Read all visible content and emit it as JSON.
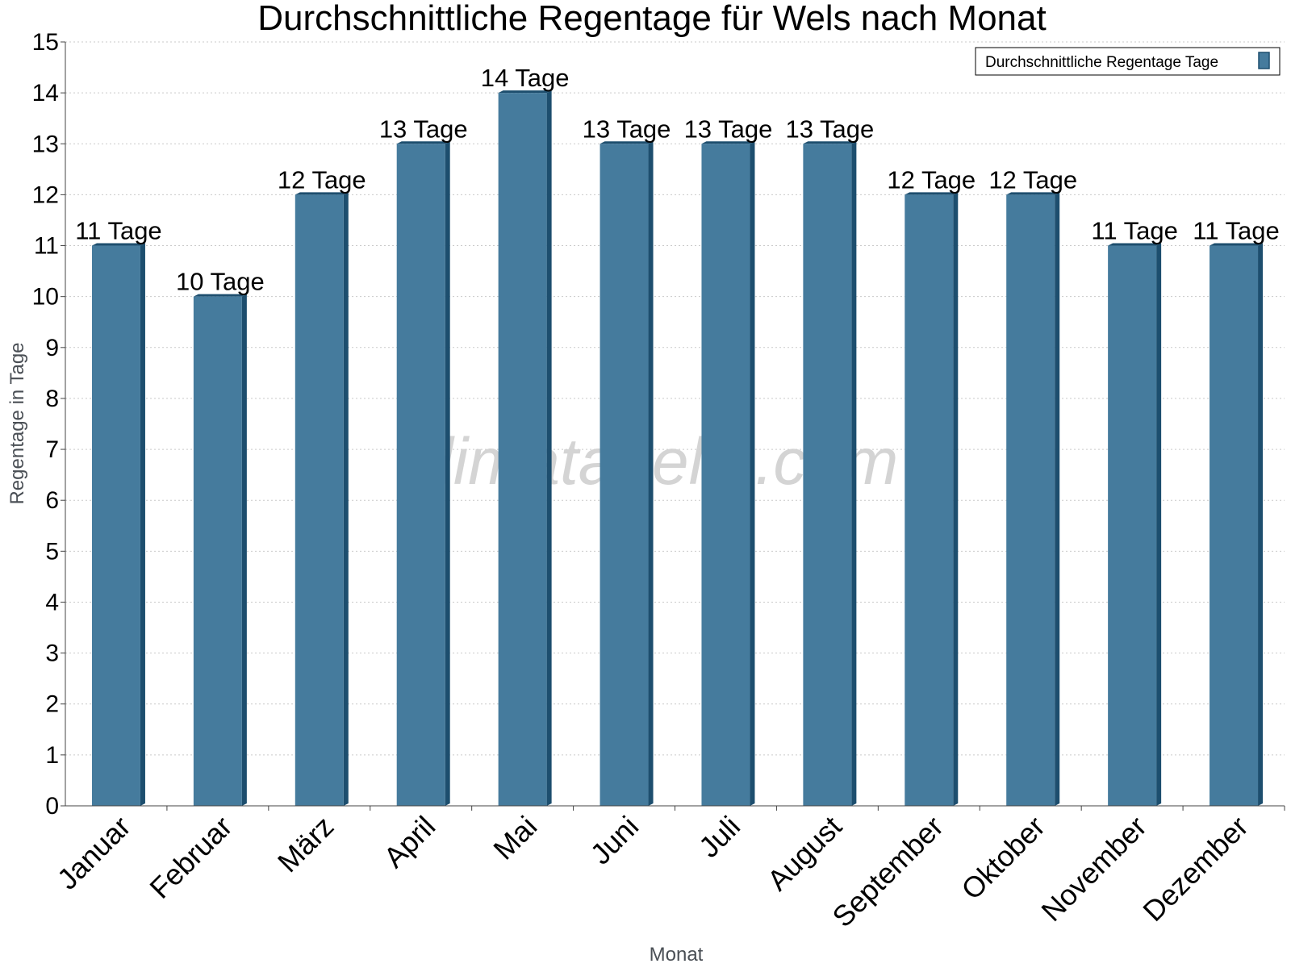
{
  "chart_data": {
    "type": "bar",
    "title": "Durchschnittliche Regentage für Wels nach Monat",
    "xlabel": "Monat",
    "ylabel": "Regentage in Tage",
    "categories": [
      "Januar",
      "Februar",
      "März",
      "April",
      "Mai",
      "Juni",
      "Juli",
      "August",
      "September",
      "Oktober",
      "November",
      "Dezember"
    ],
    "series": [
      {
        "name": "Durchschnittliche Regentage Tage",
        "values": [
          11,
          10,
          12,
          13,
          14,
          13,
          13,
          13,
          12,
          12,
          11,
          11
        ],
        "labels": [
          "11 Tage",
          "10 Tage",
          "12 Tage",
          "13 Tage",
          "14 Tage",
          "13 Tage",
          "13 Tage",
          "13 Tage",
          "12 Tage",
          "12 Tage",
          "11 Tage",
          "11 Tage"
        ],
        "color": "#457b9d",
        "side_color": "#1d4e6e"
      }
    ],
    "yticks": [
      "0",
      "1",
      "2",
      "3",
      "4",
      "5",
      "6",
      "7",
      "8",
      "9",
      "10",
      "11",
      "12",
      "13",
      "14",
      "15"
    ],
    "ylim": [
      0,
      15
    ],
    "grid": true,
    "legend_position": "top-right",
    "watermark": "klimatabelle.com"
  }
}
